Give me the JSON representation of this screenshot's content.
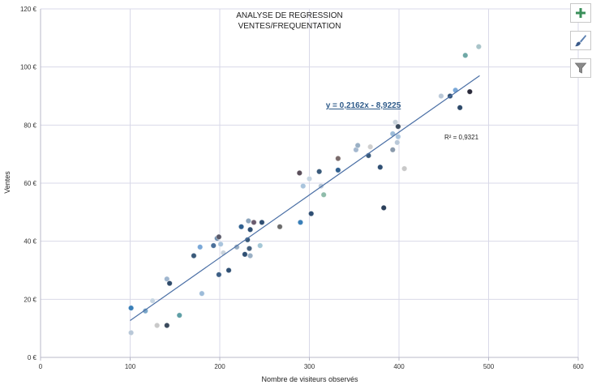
{
  "side_buttons": [
    {
      "name": "chart-elements-button",
      "icon": "plus-icon"
    },
    {
      "name": "chart-styles-button",
      "icon": "brush-icon"
    },
    {
      "name": "chart-filters-button",
      "icon": "funnel-icon"
    }
  ],
  "colors": {
    "trendline": "#4a6fa5",
    "grid": "#d9d9e8",
    "equation": "#2f5b8a"
  },
  "chart_data": {
    "type": "scatter",
    "title": [
      "ANALYSE DE REGRESSION",
      "VENTES/FREQUENTATION"
    ],
    "xlabel": "Nombre de visiteurs observés",
    "ylabel": "Ventes",
    "xlim": [
      0,
      600
    ],
    "ylim": [
      0,
      120
    ],
    "x_ticks": [
      0,
      100,
      200,
      300,
      400,
      500,
      600
    ],
    "y_ticks": [
      0,
      20,
      40,
      60,
      80,
      100,
      120
    ],
    "y_tick_suffix": " €",
    "grid": true,
    "trendline": {
      "slope": 0.2162,
      "intercept": -8.9225,
      "x_range": [
        100,
        490
      ],
      "equation": "y = 0,2162x - 8,9225",
      "r2": "R² = 0,9321"
    },
    "points": [
      {
        "x": 101,
        "y": 17,
        "c": "#3a7fb8"
      },
      {
        "x": 101,
        "y": 8.5,
        "c": "#b9c8d8"
      },
      {
        "x": 117,
        "y": 16,
        "c": "#7aa6c9"
      },
      {
        "x": 125,
        "y": 19.5,
        "c": "#c7d6e3"
      },
      {
        "x": 130,
        "y": 11,
        "c": "#c9c9c9"
      },
      {
        "x": 141,
        "y": 27,
        "c": "#9fb6cf"
      },
      {
        "x": 141,
        "y": 11,
        "c": "#3b4a5c"
      },
      {
        "x": 144,
        "y": 25.5,
        "c": "#2e4a6a"
      },
      {
        "x": 155,
        "y": 14.5,
        "c": "#5f9fa6"
      },
      {
        "x": 171,
        "y": 35,
        "c": "#3a5a7a"
      },
      {
        "x": 178,
        "y": 38,
        "c": "#7aa8d8"
      },
      {
        "x": 180,
        "y": 22,
        "c": "#9dbcd9"
      },
      {
        "x": 193,
        "y": 38.5,
        "c": "#4a6f9a"
      },
      {
        "x": 197,
        "y": 41,
        "c": "#6e8fb0"
      },
      {
        "x": 199,
        "y": 41.5,
        "c": "#5a5a6a"
      },
      {
        "x": 199,
        "y": 28.5,
        "c": "#3e5f85"
      },
      {
        "x": 201,
        "y": 39,
        "c": "#a9c4dd"
      },
      {
        "x": 204,
        "y": 36,
        "c": "#c9d3dc"
      },
      {
        "x": 210,
        "y": 30,
        "c": "#2f4f73"
      },
      {
        "x": 219,
        "y": 38,
        "c": "#9aaec2"
      },
      {
        "x": 224,
        "y": 45,
        "c": "#2e5f8f"
      },
      {
        "x": 228,
        "y": 35.5,
        "c": "#2f4f73"
      },
      {
        "x": 231,
        "y": 40.5,
        "c": "#3a5a7a"
      },
      {
        "x": 232,
        "y": 47,
        "c": "#8da5bd"
      },
      {
        "x": 233,
        "y": 37.5,
        "c": "#45607e"
      },
      {
        "x": 234,
        "y": 44,
        "c": "#2f4f73"
      },
      {
        "x": 234,
        "y": 35,
        "c": "#9ab0c5"
      },
      {
        "x": 238,
        "y": 46.5,
        "c": "#6a5b6e"
      },
      {
        "x": 245,
        "y": 38.5,
        "c": "#a4c7d6"
      },
      {
        "x": 247,
        "y": 46.5,
        "c": "#2f4f73"
      },
      {
        "x": 267,
        "y": 45,
        "c": "#6b6b6b"
      },
      {
        "x": 289,
        "y": 63.5,
        "c": "#5a4e5a"
      },
      {
        "x": 290,
        "y": 46.5,
        "c": "#3a7fb8"
      },
      {
        "x": 293,
        "y": 59,
        "c": "#a9c4dd"
      },
      {
        "x": 300,
        "y": 61.5,
        "c": "#c7d6e3"
      },
      {
        "x": 302,
        "y": 49.5,
        "c": "#2f4f73"
      },
      {
        "x": 311,
        "y": 64,
        "c": "#3a5a7a"
      },
      {
        "x": 313,
        "y": 59,
        "c": "#b9c8d8"
      },
      {
        "x": 316,
        "y": 56,
        "c": "#8fbcaa"
      },
      {
        "x": 332,
        "y": 68.5,
        "c": "#7a6b6b"
      },
      {
        "x": 332,
        "y": 64.5,
        "c": "#2f5f8f"
      },
      {
        "x": 352,
        "y": 71.5,
        "c": "#a4b8cf"
      },
      {
        "x": 354,
        "y": 73,
        "c": "#9ab0c5"
      },
      {
        "x": 368,
        "y": 72.5,
        "c": "#cfcfcf"
      },
      {
        "x": 366,
        "y": 69.5,
        "c": "#3a5a7a"
      },
      {
        "x": 379,
        "y": 65.5,
        "c": "#2f4f73"
      },
      {
        "x": 383,
        "y": 51.5,
        "c": "#2a3f5a"
      },
      {
        "x": 393,
        "y": 77,
        "c": "#9dbcd9"
      },
      {
        "x": 393,
        "y": 71.5,
        "c": "#8a9aac"
      },
      {
        "x": 396,
        "y": 81,
        "c": "#c9d3dc"
      },
      {
        "x": 398,
        "y": 74,
        "c": "#b9c8d8"
      },
      {
        "x": 399,
        "y": 76,
        "c": "#a9c4dd"
      },
      {
        "x": 399,
        "y": 79.5,
        "c": "#3a4a5c"
      },
      {
        "x": 406,
        "y": 65,
        "c": "#c9c9c9"
      },
      {
        "x": 447,
        "y": 90,
        "c": "#b9c8d8"
      },
      {
        "x": 457,
        "y": 90,
        "c": "#2f4f73"
      },
      {
        "x": 463,
        "y": 92,
        "c": "#7aa8d8"
      },
      {
        "x": 468,
        "y": 86,
        "c": "#2e4a6a"
      },
      {
        "x": 474,
        "y": 104,
        "c": "#6fa8a6"
      },
      {
        "x": 479,
        "y": 91.5,
        "c": "#2a2a3a"
      },
      {
        "x": 489,
        "y": 107,
        "c": "#a9c4c9"
      }
    ]
  }
}
